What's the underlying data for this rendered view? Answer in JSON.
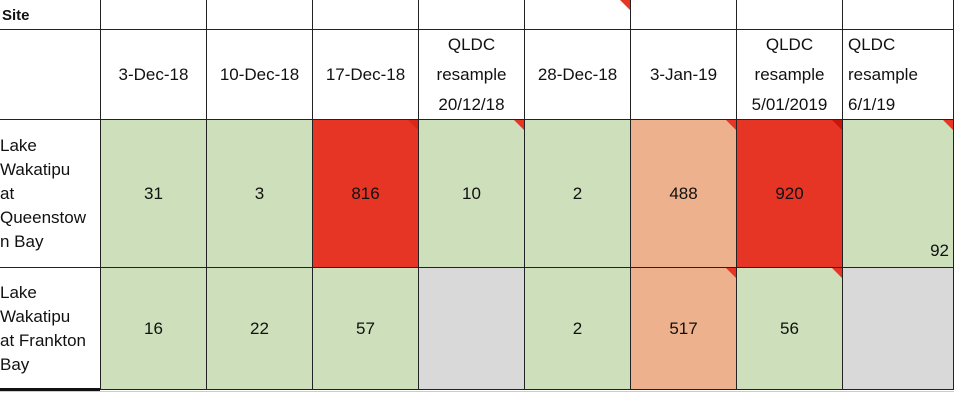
{
  "header": {
    "site_label": "Site",
    "columns": [
      "3-Dec-18",
      "10-Dec-18",
      "17-Dec-18",
      "QLDC\nresample\n20/12/18",
      "28-Dec-18",
      "3-Jan-19",
      "QLDC\nresample\n5/01/2019",
      "QLDC\nresample\n6/1/19"
    ]
  },
  "rows": [
    {
      "site": "Lake\nWakatipu\nat\nQueenstow\nn Bay",
      "values": [
        "31",
        "3",
        "816",
        "10",
        "2",
        "488",
        "920",
        "92"
      ]
    },
    {
      "site": "Lake\nWakatipu\nat Frankton\nBay",
      "values": [
        "16",
        "22",
        "57",
        "",
        "2",
        "517",
        "56",
        ""
      ]
    }
  ],
  "colors": {
    "green": "#cddfbb",
    "red": "#e63425",
    "orange": "#eeb18d",
    "gray": "#d9d9d9"
  }
}
